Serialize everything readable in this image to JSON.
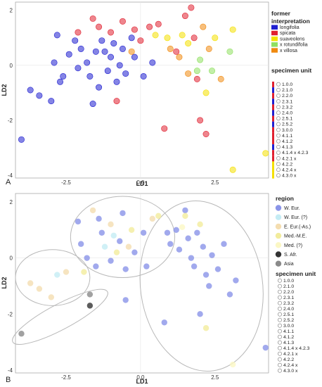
{
  "chart_data": [
    {
      "panel": "A",
      "type": "scatter",
      "xlabel": "LD1",
      "ylabel": "LD2",
      "xlim": [
        -4.2,
        4.3
      ],
      "ylim": [
        -4.1,
        2.3
      ],
      "x_ticks": [
        "-2.5",
        "0.0",
        "2.5"
      ],
      "y_ticks": [
        "2",
        "0",
        "-2",
        "-4"
      ],
      "legend_color": {
        "title_line1": "former",
        "title_line2": "interpretation",
        "items": [
          {
            "label": "longifolia",
            "color": "#1f1fd0"
          },
          {
            "label": "spicata",
            "color": "#e02030"
          },
          {
            "label": "suaveolens",
            "color": "#f4e000"
          },
          {
            "label": "x rotundifolia",
            "color": "#8fe060"
          },
          {
            "label": "x villosa",
            "color": "#f08a10"
          }
        ]
      },
      "legend_units": {
        "title": "specimen unit",
        "items": [
          "1.0.0",
          "2.1.0",
          "2.2.0",
          "2.3.1",
          "2.3.2",
          "2.4.0",
          "2.5.1",
          "2.5.2",
          "3.0.0",
          "4.1.1",
          "4.1.2",
          "4.1.3",
          "4.1.4 x 4.2.3",
          "4.2.1 x",
          "4.2.2",
          "4.2.4 x",
          "4.3.0 x"
        ],
        "bar_colors": [
          "#e02030",
          "#1f1fd0",
          "#e02030",
          "#1f1fd0",
          "#e02030",
          "#1f1fd0",
          "#e02030",
          "#1f1fd0",
          "#e02030",
          "#e02030",
          "#e02030",
          "#1f1fd0",
          "#e02030",
          "#e02030",
          "#f4e000",
          "#f4e000",
          "#f4e000"
        ]
      },
      "points": [
        {
          "x": -4.0,
          "y": -2.7,
          "group": "longifolia"
        },
        {
          "x": -3.7,
          "y": -0.9,
          "group": "longifolia"
        },
        {
          "x": -3.4,
          "y": -1.1,
          "group": "longifolia"
        },
        {
          "x": -3.0,
          "y": -1.3,
          "group": "longifolia"
        },
        {
          "x": -2.9,
          "y": 0.1,
          "group": "longifolia"
        },
        {
          "x": -2.8,
          "y": 1.1,
          "group": "longifolia"
        },
        {
          "x": -2.7,
          "y": -0.6,
          "group": "longifolia"
        },
        {
          "x": -2.6,
          "y": -0.4,
          "group": "longifolia"
        },
        {
          "x": -2.4,
          "y": 0.4,
          "group": "longifolia"
        },
        {
          "x": -2.2,
          "y": 0.9,
          "group": "longifolia"
        },
        {
          "x": -2.1,
          "y": -0.1,
          "group": "longifolia"
        },
        {
          "x": -2.0,
          "y": 0.6,
          "group": "longifolia"
        },
        {
          "x": -1.8,
          "y": 0.1,
          "group": "longifolia"
        },
        {
          "x": -1.7,
          "y": -0.4,
          "group": "longifolia"
        },
        {
          "x": -1.6,
          "y": -1.4,
          "group": "longifolia"
        },
        {
          "x": -1.5,
          "y": 0.5,
          "group": "longifolia"
        },
        {
          "x": -1.4,
          "y": -0.8,
          "group": "longifolia"
        },
        {
          "x": -1.3,
          "y": 0.9,
          "group": "longifolia"
        },
        {
          "x": -1.2,
          "y": 0.5,
          "group": "longifolia"
        },
        {
          "x": -1.1,
          "y": -0.2,
          "group": "longifolia"
        },
        {
          "x": -1.0,
          "y": 0.3,
          "group": "longifolia"
        },
        {
          "x": -0.9,
          "y": 0.8,
          "group": "longifolia"
        },
        {
          "x": -0.8,
          "y": -0.6,
          "group": "longifolia"
        },
        {
          "x": -0.7,
          "y": 0.0,
          "group": "longifolia"
        },
        {
          "x": -0.6,
          "y": 0.6,
          "group": "longifolia"
        },
        {
          "x": -0.5,
          "y": -0.3,
          "group": "longifolia"
        },
        {
          "x": -0.3,
          "y": 1.0,
          "group": "longifolia"
        },
        {
          "x": -0.2,
          "y": 0.3,
          "group": "longifolia"
        },
        {
          "x": 0.1,
          "y": -0.4,
          "group": "longifolia"
        },
        {
          "x": 0.4,
          "y": 0.1,
          "group": "longifolia"
        },
        {
          "x": -2.1,
          "y": 1.2,
          "group": "spicata"
        },
        {
          "x": -1.6,
          "y": 1.7,
          "group": "spicata"
        },
        {
          "x": -1.4,
          "y": 1.4,
          "group": "spicata"
        },
        {
          "x": -1.0,
          "y": 1.2,
          "group": "spicata"
        },
        {
          "x": -0.8,
          "y": -1.3,
          "group": "spicata"
        },
        {
          "x": -0.6,
          "y": 1.6,
          "group": "spicata"
        },
        {
          "x": -0.2,
          "y": 1.3,
          "group": "spicata"
        },
        {
          "x": 0.0,
          "y": 0.9,
          "group": "spicata"
        },
        {
          "x": 0.3,
          "y": 1.4,
          "group": "spicata"
        },
        {
          "x": 0.6,
          "y": 1.5,
          "group": "spicata"
        },
        {
          "x": 0.8,
          "y": -2.3,
          "group": "spicata"
        },
        {
          "x": 1.2,
          "y": 0.5,
          "group": "spicata"
        },
        {
          "x": 1.5,
          "y": 1.8,
          "group": "spicata"
        },
        {
          "x": 1.8,
          "y": 1.0,
          "group": "spicata"
        },
        {
          "x": 1.9,
          "y": -0.5,
          "group": "spicata"
        },
        {
          "x": 2.0,
          "y": -2.0,
          "group": "spicata"
        },
        {
          "x": 2.2,
          "y": -2.5,
          "group": "spicata"
        },
        {
          "x": 1.7,
          "y": 2.1,
          "group": "spicata"
        },
        {
          "x": 0.9,
          "y": 1.0,
          "group": "suaveolens"
        },
        {
          "x": 1.6,
          "y": 0.8,
          "group": "suaveolens"
        },
        {
          "x": 2.5,
          "y": 1.0,
          "group": "suaveolens"
        },
        {
          "x": 3.1,
          "y": 1.3,
          "group": "suaveolens"
        },
        {
          "x": 4.2,
          "y": -3.2,
          "group": "suaveolens"
        },
        {
          "x": 3.1,
          "y": -3.8,
          "group": "suaveolens"
        },
        {
          "x": 2.2,
          "y": -1.0,
          "group": "suaveolens"
        },
        {
          "x": 0.5,
          "y": 1.1,
          "group": "suaveolens"
        },
        {
          "x": 1.4,
          "y": 1.1,
          "group": "suaveolens"
        },
        {
          "x": 2.0,
          "y": 0.2,
          "group": "x rotundifolia"
        },
        {
          "x": 2.4,
          "y": -0.2,
          "group": "x rotundifolia"
        },
        {
          "x": 3.0,
          "y": 0.5,
          "group": "x rotundifolia"
        },
        {
          "x": 1.9,
          "y": -0.2,
          "group": "x rotundifolia"
        },
        {
          "x": 1.3,
          "y": 0.3,
          "group": "x villosa"
        },
        {
          "x": 1.0,
          "y": 0.6,
          "group": "x villosa"
        },
        {
          "x": 2.3,
          "y": 0.6,
          "group": "x villosa"
        },
        {
          "x": 2.1,
          "y": 1.4,
          "group": "x villosa"
        },
        {
          "x": 2.7,
          "y": -0.5,
          "group": "x villosa"
        },
        {
          "x": 1.6,
          "y": -0.3,
          "group": "x villosa"
        },
        {
          "x": -0.3,
          "y": 0.5,
          "group": "x villosa"
        }
      ]
    },
    {
      "panel": "B",
      "type": "scatter",
      "xlabel": "LD1",
      "ylabel": "LD2",
      "xlim": [
        -4.2,
        4.3
      ],
      "ylim": [
        -4.1,
        2.3
      ],
      "x_ticks": [
        "-2.5",
        "0.0",
        "2.5"
      ],
      "y_ticks": [
        "2",
        "0",
        "-2",
        "-4"
      ],
      "legend_color": {
        "title": "region",
        "items": [
          {
            "label": "W. Eur.",
            "color": "#8a94e8"
          },
          {
            "label": "W. Eur. (?)",
            "color": "#c4ecf4"
          },
          {
            "label": "E. Eur.(-As.)",
            "color": "#f4ddb0"
          },
          {
            "label": "Med.-M.E.",
            "color": "#f2ec9c"
          },
          {
            "label": "Med. (?)",
            "color": "#fbf7c4"
          },
          {
            "label": "S. Afr.",
            "color": "#333333"
          },
          {
            "label": "Asia",
            "color": "#8a8a8a"
          }
        ]
      },
      "legend_units": {
        "title": "specimen unit",
        "items": [
          "1.0.0",
          "2.1.0",
          "2.2.0",
          "2.3.1",
          "2.3.2",
          "2.4.0",
          "2.5.1",
          "2.5.2",
          "3.0.0",
          "4.1.1",
          "4.1.2",
          "4.1.3",
          "4.1.4 x 4.2.3",
          "4.2.1 x",
          "4.2.2",
          "4.2.4 x",
          "4.3.0 x"
        ]
      },
      "points": [
        {
          "x": -4.0,
          "y": -2.7,
          "group": "Asia"
        },
        {
          "x": -1.7,
          "y": -1.3,
          "group": "Asia"
        },
        {
          "x": -1.7,
          "y": -1.7,
          "group": "S. Afr."
        },
        {
          "x": -3.7,
          "y": -0.9,
          "group": "E. Eur.(-As.)"
        },
        {
          "x": -3.4,
          "y": -1.1,
          "group": "E. Eur.(-As.)"
        },
        {
          "x": -3.0,
          "y": -1.4,
          "group": "E. Eur.(-As.)"
        },
        {
          "x": -2.8,
          "y": -0.6,
          "group": "W. Eur. (?)"
        },
        {
          "x": -2.5,
          "y": -0.5,
          "group": "E. Eur.(-As.)"
        },
        {
          "x": -1.9,
          "y": -0.5,
          "group": "Med.-M.E."
        },
        {
          "x": -1.5,
          "y": -0.3,
          "group": "W. Eur."
        },
        {
          "x": -2.1,
          "y": 1.3,
          "group": "W. Eur."
        },
        {
          "x": -2.0,
          "y": 0.5,
          "group": "W. Eur."
        },
        {
          "x": -1.8,
          "y": 0.0,
          "group": "W. Eur."
        },
        {
          "x": -1.6,
          "y": 1.7,
          "group": "E. Eur.(-As.)"
        },
        {
          "x": -1.4,
          "y": 1.4,
          "group": "W. Eur."
        },
        {
          "x": -1.3,
          "y": 0.9,
          "group": "W. Eur."
        },
        {
          "x": -1.2,
          "y": 0.4,
          "group": "W. Eur. (?)"
        },
        {
          "x": -1.0,
          "y": 1.2,
          "group": "E. Eur.(-As.)"
        },
        {
          "x": -1.0,
          "y": -0.1,
          "group": "W. Eur."
        },
        {
          "x": -0.9,
          "y": 0.8,
          "group": "W. Eur. (?)"
        },
        {
          "x": -0.8,
          "y": 0.2,
          "group": "Med.-M.E."
        },
        {
          "x": -0.7,
          "y": 0.6,
          "group": "W. Eur."
        },
        {
          "x": -0.6,
          "y": 1.6,
          "group": "W. Eur."
        },
        {
          "x": -0.5,
          "y": -0.4,
          "group": "W. Eur."
        },
        {
          "x": -0.4,
          "y": 0.4,
          "group": "E. Eur.(-As.)"
        },
        {
          "x": -0.3,
          "y": 1.0,
          "group": "Med.-M.E."
        },
        {
          "x": -0.2,
          "y": 0.2,
          "group": "W. Eur."
        },
        {
          "x": 0.1,
          "y": 0.9,
          "group": "W. Eur."
        },
        {
          "x": 0.2,
          "y": -0.3,
          "group": "W. Eur."
        },
        {
          "x": 0.4,
          "y": 1.4,
          "group": "E. Eur.(-As.)"
        },
        {
          "x": 0.6,
          "y": 1.5,
          "group": "Med.-M.E."
        },
        {
          "x": 0.9,
          "y": 0.9,
          "group": "W. Eur."
        },
        {
          "x": 1.0,
          "y": 0.5,
          "group": "W. Eur."
        },
        {
          "x": 1.2,
          "y": 1.0,
          "group": "W. Eur."
        },
        {
          "x": 1.3,
          "y": 0.3,
          "group": "W. Eur."
        },
        {
          "x": 1.5,
          "y": 1.7,
          "group": "W. Eur."
        },
        {
          "x": 1.6,
          "y": 0.7,
          "group": "W. Eur."
        },
        {
          "x": 1.7,
          "y": 0.0,
          "group": "W. Eur."
        },
        {
          "x": 1.8,
          "y": -0.3,
          "group": "W. Eur."
        },
        {
          "x": 1.9,
          "y": 0.9,
          "group": "W. Eur."
        },
        {
          "x": 2.0,
          "y": 1.2,
          "group": "Med.-M.E."
        },
        {
          "x": 2.1,
          "y": 0.4,
          "group": "W. Eur."
        },
        {
          "x": 2.2,
          "y": -0.6,
          "group": "W. Eur."
        },
        {
          "x": 2.3,
          "y": -1.0,
          "group": "W. Eur."
        },
        {
          "x": 2.4,
          "y": 0.1,
          "group": "W. Eur."
        },
        {
          "x": 2.6,
          "y": -0.4,
          "group": "W. Eur."
        },
        {
          "x": 2.8,
          "y": 0.5,
          "group": "W. Eur."
        },
        {
          "x": 3.0,
          "y": -1.3,
          "group": "W. Eur."
        },
        {
          "x": 3.2,
          "y": -0.8,
          "group": "W. Eur."
        },
        {
          "x": 2.0,
          "y": -2.0,
          "group": "W. Eur."
        },
        {
          "x": 2.2,
          "y": -2.5,
          "group": "Med.-M.E."
        },
        {
          "x": 3.1,
          "y": -3.8,
          "group": "Med. (?)"
        },
        {
          "x": 4.2,
          "y": -3.2,
          "group": "W. Eur."
        },
        {
          "x": 0.8,
          "y": -2.3,
          "group": "W. Eur."
        },
        {
          "x": -0.5,
          "y": -1.5,
          "group": "W. Eur."
        },
        {
          "x": 1.4,
          "y": 1.1,
          "group": "Med. (?)"
        },
        {
          "x": 1.5,
          "y": 1.5,
          "group": "Med.-M.E."
        }
      ],
      "ellipses": [
        {
          "cx": -2.95,
          "cy": -0.7,
          "rx": 1.25,
          "ry": 1.0,
          "angle": 0
        },
        {
          "cx": -2.7,
          "cy": -2.1,
          "rx": 1.8,
          "ry": 0.45,
          "angle": 28
        },
        {
          "cx": -0.6,
          "cy": 0.75,
          "rx": 1.75,
          "ry": 1.45,
          "angle": 0
        },
        {
          "cx": 2.05,
          "cy": -1.0,
          "rx": 2.05,
          "ry": 3.05,
          "angle": 8
        }
      ]
    }
  ]
}
